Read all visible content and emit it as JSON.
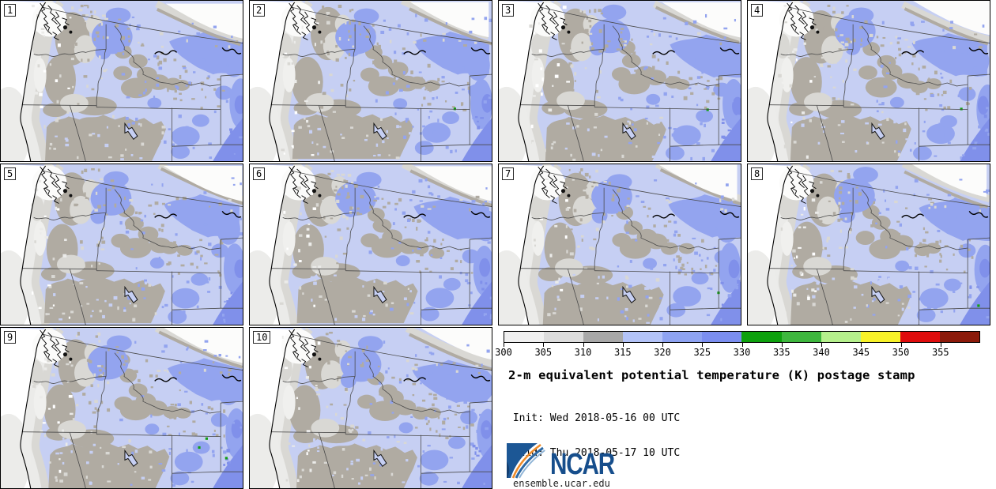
{
  "figure": {
    "title": "2-m equivalent potential temperature (K) postage stamp",
    "init_line": " Init: Wed 2018-05-16 00 UTC",
    "valid_line": "Valid: Thu 2018-05-17 10 UTC",
    "branding": {
      "org": "NCAR",
      "site": "ensemble.ucar.edu",
      "logo_blue": "#1c5795",
      "logo_orange": "#ef8b28"
    }
  },
  "panels": [
    {
      "label": "1"
    },
    {
      "label": "2"
    },
    {
      "label": "3"
    },
    {
      "label": "4"
    },
    {
      "label": "5"
    },
    {
      "label": "6"
    },
    {
      "label": "7"
    },
    {
      "label": "8"
    },
    {
      "label": "9"
    },
    {
      "label": "10"
    }
  ],
  "chart_data": {
    "type": "heatmap",
    "title": "2-m equivalent potential temperature (K) postage stamp",
    "variable": "2-m equivalent potential temperature",
    "units": "K",
    "init_time": "Wed 2018-05-16 00 UTC",
    "valid_time": "Thu 2018-05-17 10 UTC",
    "ensemble_members": [
      "1",
      "2",
      "3",
      "4",
      "5",
      "6",
      "7",
      "8",
      "9",
      "10"
    ],
    "region": "Pacific Northwest / Northern Rockies",
    "legend_position": "bottom-right",
    "colorbar": {
      "orientation": "horizontal",
      "range": [
        300,
        360
      ],
      "tick_step": 5,
      "tick_labels": [
        "300",
        "305",
        "310",
        "315",
        "320",
        "325",
        "330",
        "335",
        "340",
        "345",
        "350",
        "355"
      ],
      "segment_colors": [
        "#f0f0f0",
        "#dcdcdc",
        "#a8a8a8",
        "#b3c3f8",
        "#8ea3f2",
        "#7b8ef0",
        "#0da10d",
        "#3eb73e",
        "#b5f08c",
        "#f8f228",
        "#df0c0c",
        "#8c1a0a"
      ]
    },
    "map_palette": {
      "ocean_white": "#ffffff",
      "band_300_305": "#ebebe9",
      "band_305_310": "#d9d8d4",
      "band_310_315": "#b0aba2",
      "band_315_320": "#c6cff3",
      "band_320_325": "#93a4ef",
      "band_325_330": "#8090ea",
      "band_330_335": "#12a012",
      "border_line": "#4a4a4a",
      "coast_line": "#000000"
    }
  }
}
